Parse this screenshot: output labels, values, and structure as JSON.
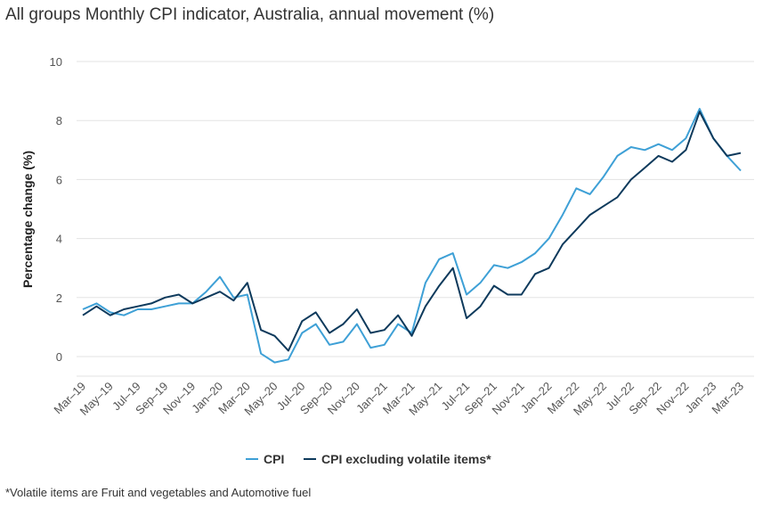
{
  "title": "All groups Monthly CPI indicator, Australia, annual movement (%)",
  "footnote": "*Volatile items are Fruit and vegetables and Automotive fuel",
  "chart_data": {
    "type": "line",
    "ylabel": "Percentage change (%)",
    "ylim": [
      -0.7,
      10
    ],
    "yticks": [
      0,
      2,
      4,
      6,
      8,
      10
    ],
    "grid": true,
    "legend_position": "bottom",
    "x": [
      "Mar-19",
      "Apr-19",
      "May-19",
      "Jun-19",
      "Jul-19",
      "Aug-19",
      "Sep-19",
      "Oct-19",
      "Nov-19",
      "Dec-19",
      "Jan-20",
      "Feb-20",
      "Mar-20",
      "Apr-20",
      "May-20",
      "Jun-20",
      "Jul-20",
      "Aug-20",
      "Sep-20",
      "Oct-20",
      "Nov-20",
      "Dec-20",
      "Jan-21",
      "Feb-21",
      "Mar-21",
      "Apr-21",
      "May-21",
      "Jun-21",
      "Jul-21",
      "Aug-21",
      "Sep-21",
      "Oct-21",
      "Nov-21",
      "Dec-21",
      "Jan-22",
      "Feb-22",
      "Mar-22",
      "Apr-22",
      "May-22",
      "Jun-22",
      "Jul-22",
      "Aug-22",
      "Sep-22",
      "Oct-22",
      "Nov-22",
      "Dec-22",
      "Jan-23",
      "Feb-23",
      "Mar-23"
    ],
    "xticklabels": [
      "Mar–19",
      "May–19",
      "Jul–19",
      "Sep–19",
      "Nov–19",
      "Jan–20",
      "Mar–20",
      "May–20",
      "Jul–20",
      "Sep–20",
      "Nov–20",
      "Jan–21",
      "Mar–21",
      "May–21",
      "Jul–21",
      "Sep–21",
      "Nov–21",
      "Jan–22",
      "Mar–22",
      "May–22",
      "Jul–22",
      "Sep–22",
      "Nov–22",
      "Jan–23",
      "Mar–23"
    ],
    "series": [
      {
        "name": "CPI",
        "color": "#3ea0d6",
        "values": [
          1.6,
          1.8,
          1.5,
          1.4,
          1.6,
          1.6,
          1.7,
          1.8,
          1.8,
          2.2,
          2.7,
          2.0,
          2.1,
          0.1,
          -0.2,
          -0.1,
          0.8,
          1.1,
          0.4,
          0.5,
          1.1,
          0.3,
          0.4,
          1.1,
          0.8,
          2.5,
          3.3,
          3.5,
          2.1,
          2.5,
          3.1,
          3.0,
          3.2,
          3.5,
          4.0,
          4.8,
          5.7,
          5.5,
          6.1,
          6.8,
          7.1,
          7.0,
          7.2,
          7.0,
          7.4,
          8.4,
          7.4,
          6.8,
          6.3
        ]
      },
      {
        "name": "CPI excluding volatile items*",
        "color": "#0e3a5c",
        "values": [
          1.4,
          1.7,
          1.4,
          1.6,
          1.7,
          1.8,
          2.0,
          2.1,
          1.8,
          2.0,
          2.2,
          1.9,
          2.5,
          0.9,
          0.7,
          0.2,
          1.2,
          1.5,
          0.8,
          1.1,
          1.6,
          0.8,
          0.9,
          1.4,
          0.7,
          1.7,
          2.4,
          3.0,
          1.3,
          1.7,
          2.4,
          2.1,
          2.1,
          2.8,
          3.0,
          3.8,
          4.3,
          4.8,
          5.1,
          5.4,
          6.0,
          6.4,
          6.8,
          6.6,
          7.0,
          8.3,
          7.4,
          6.8,
          6.9
        ]
      }
    ]
  }
}
